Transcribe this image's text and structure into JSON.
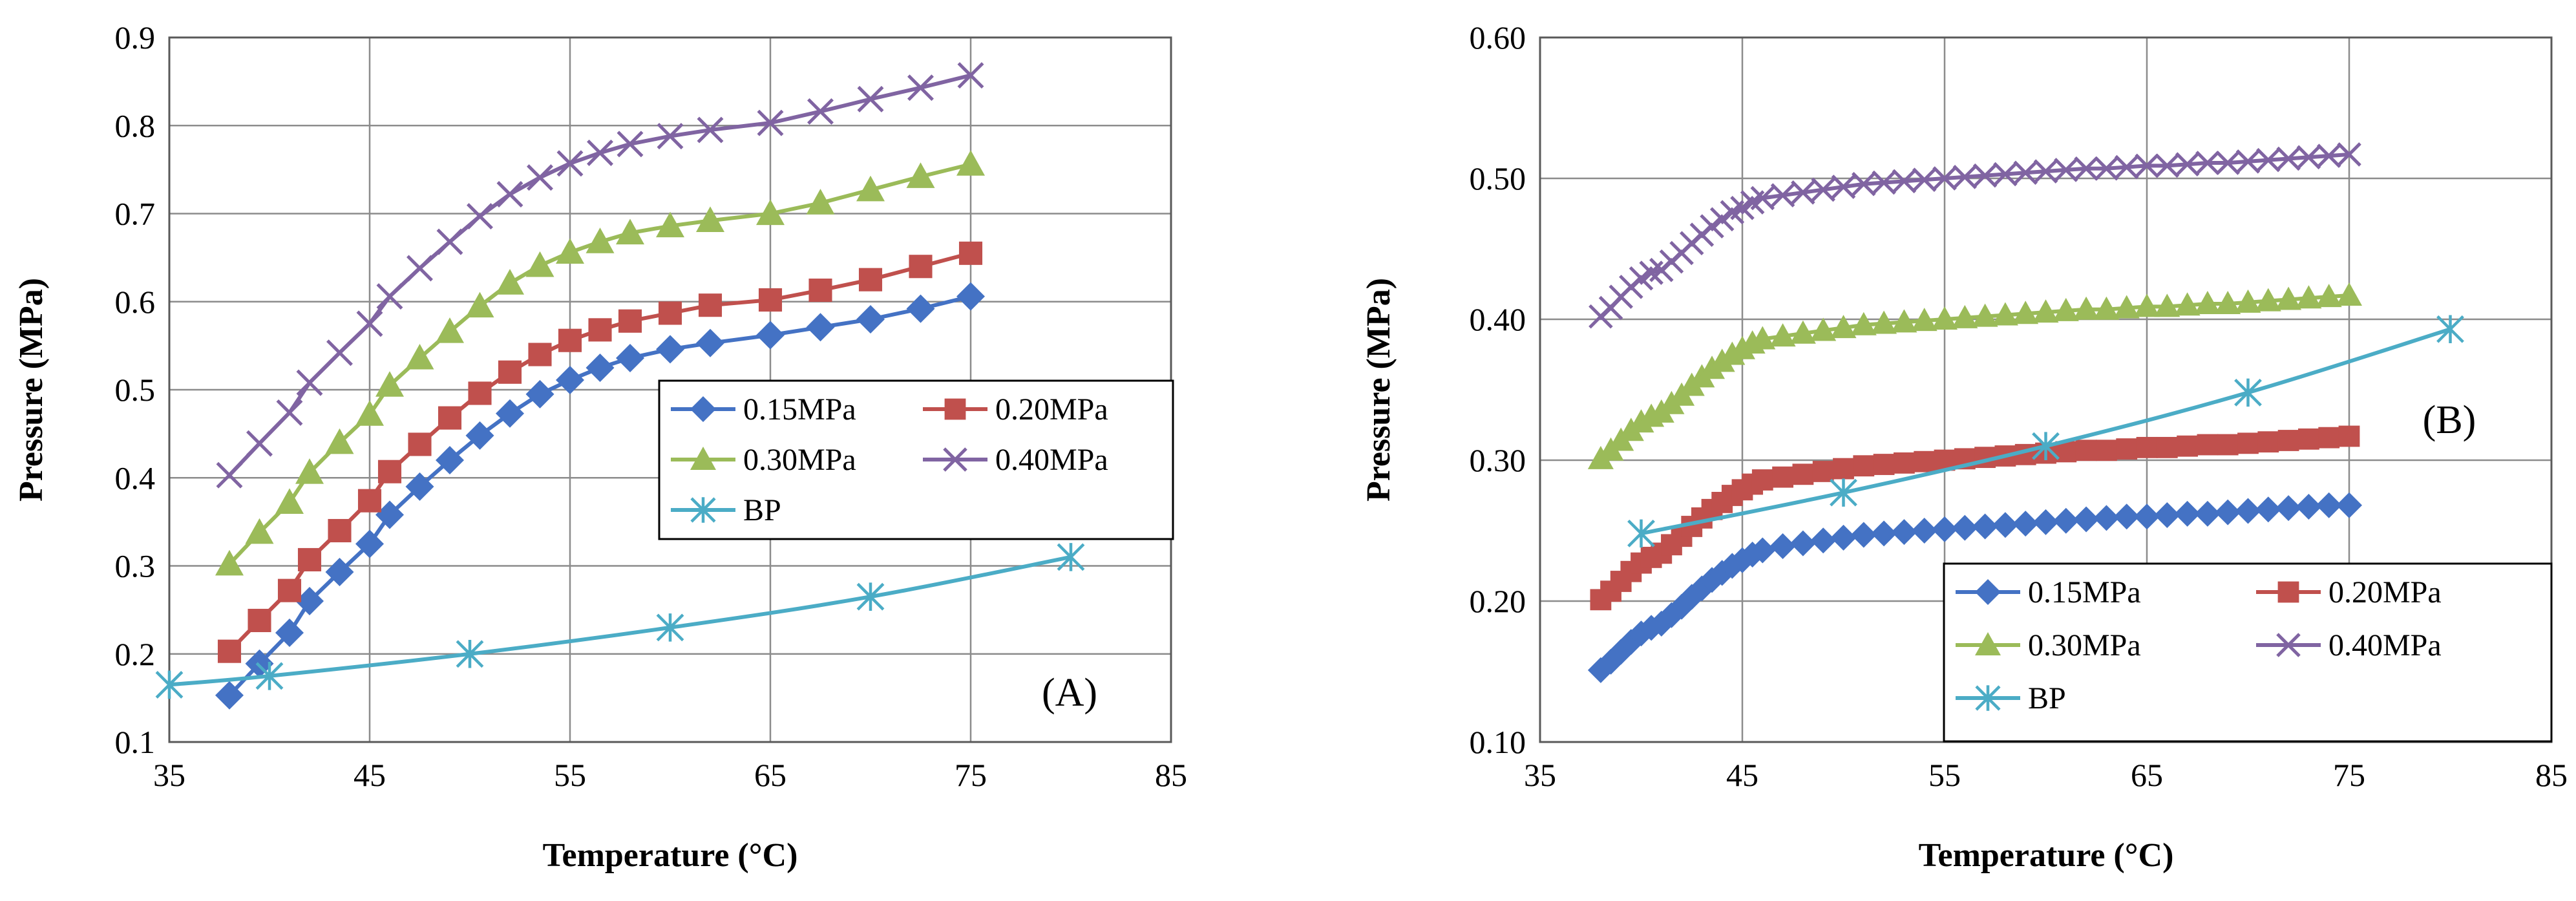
{
  "chart_data": [
    {
      "type": "line",
      "panel_label": "(A)",
      "xlabel": "Temperature (°C)",
      "ylabel": "Pressure (MPa)",
      "xlim": [
        35,
        85
      ],
      "ylim": [
        0.1,
        0.9
      ],
      "x_ticks": [
        "35",
        "45",
        "55",
        "65",
        "75",
        "85"
      ],
      "y_ticks": [
        "0.1",
        "0.2",
        "0.3",
        "0.4",
        "0.5",
        "0.6",
        "0.7",
        "0.8",
        "0.9"
      ],
      "grid": true,
      "legend_position": "center-right",
      "legend_columns": 2,
      "series": [
        {
          "name": "0.15MPa",
          "color": "#4472C4",
          "marker": "diamond",
          "x": [
            38,
            39.5,
            41,
            42,
            43.5,
            45,
            46,
            47.5,
            49,
            50.5,
            52,
            53.5,
            55,
            56.5,
            58,
            60,
            62,
            65,
            67.5,
            70,
            72.5,
            75
          ],
          "y": [
            0.153,
            0.189,
            0.224,
            0.26,
            0.293,
            0.325,
            0.358,
            0.39,
            0.42,
            0.448,
            0.473,
            0.495,
            0.511,
            0.525,
            0.536,
            0.546,
            0.553,
            0.562,
            0.571,
            0.58,
            0.592,
            0.606
          ]
        },
        {
          "name": "0.20MPa",
          "color": "#C0504D",
          "marker": "square",
          "x": [
            38,
            39.5,
            41,
            42,
            43.5,
            45,
            46,
            47.5,
            49,
            50.5,
            52,
            53.5,
            55,
            56.5,
            58,
            60,
            62,
            65,
            67.5,
            70,
            72.5,
            75
          ],
          "y": [
            0.203,
            0.238,
            0.272,
            0.307,
            0.34,
            0.374,
            0.407,
            0.438,
            0.468,
            0.496,
            0.52,
            0.54,
            0.556,
            0.568,
            0.578,
            0.587,
            0.596,
            0.602,
            0.613,
            0.625,
            0.64,
            0.655
          ]
        },
        {
          "name": "0.30MPa",
          "color": "#9BBB59",
          "marker": "triangle",
          "x": [
            38,
            39.5,
            41,
            42,
            43.5,
            45,
            46,
            47.5,
            49,
            50.5,
            52,
            53.5,
            55,
            56.5,
            58,
            60,
            62,
            65,
            67.5,
            70,
            72.5,
            75
          ],
          "y": [
            0.302,
            0.338,
            0.372,
            0.406,
            0.44,
            0.472,
            0.505,
            0.536,
            0.566,
            0.595,
            0.621,
            0.641,
            0.656,
            0.668,
            0.678,
            0.686,
            0.692,
            0.7,
            0.712,
            0.727,
            0.742,
            0.756
          ]
        },
        {
          "name": "0.40MPa",
          "color": "#8064A2",
          "marker": "x",
          "x": [
            38,
            39.5,
            41,
            42,
            43.5,
            45,
            46,
            47.5,
            49,
            50.5,
            52,
            53.5,
            55,
            56.5,
            58,
            60,
            62,
            65,
            67.5,
            70,
            72.5,
            75
          ],
          "y": [
            0.403,
            0.439,
            0.474,
            0.508,
            0.542,
            0.575,
            0.606,
            0.638,
            0.668,
            0.697,
            0.722,
            0.741,
            0.757,
            0.769,
            0.779,
            0.788,
            0.795,
            0.803,
            0.816,
            0.83,
            0.843,
            0.857
          ]
        },
        {
          "name": "BP",
          "color": "#4BACC6",
          "marker": "asterisk",
          "smooth": true,
          "x": [
            35,
            40,
            50,
            60,
            70,
            80
          ],
          "y": [
            0.165,
            0.175,
            0.2,
            0.23,
            0.265,
            0.31
          ]
        }
      ]
    },
    {
      "type": "line",
      "panel_label": "(B)",
      "xlabel": "Temperature (°C)",
      "ylabel": "Pressure (MPa)",
      "xlim": [
        35,
        85
      ],
      "ylim": [
        0.1,
        0.6
      ],
      "x_ticks": [
        "35",
        "45",
        "55",
        "65",
        "75",
        "85"
      ],
      "y_ticks": [
        "0.10",
        "0.20",
        "0.30",
        "0.40",
        "0.50",
        "0.60"
      ],
      "grid": true,
      "legend_position": "bottom-right",
      "legend_columns": 2,
      "series": [
        {
          "name": "0.15MPa",
          "color": "#4472C4",
          "marker": "diamond",
          "x": [
            38,
            38.5,
            39,
            39.5,
            40,
            40.5,
            41,
            41.5,
            42,
            42.5,
            43,
            43.5,
            44,
            44.5,
            45,
            45.5,
            46,
            47,
            48,
            49,
            50,
            51,
            52,
            53,
            54,
            55,
            56,
            57,
            58,
            59,
            60,
            61,
            62,
            63,
            64,
            65,
            66,
            67,
            68,
            69,
            70,
            71,
            72,
            73,
            74,
            75
          ],
          "y": [
            0.151,
            0.157,
            0.164,
            0.171,
            0.177,
            0.181,
            0.184,
            0.19,
            0.196,
            0.203,
            0.209,
            0.215,
            0.22,
            0.225,
            0.229,
            0.233,
            0.236,
            0.239,
            0.241,
            0.243,
            0.245,
            0.247,
            0.248,
            0.249,
            0.25,
            0.251,
            0.252,
            0.253,
            0.254,
            0.255,
            0.256,
            0.257,
            0.258,
            0.259,
            0.26,
            0.26,
            0.261,
            0.262,
            0.262,
            0.263,
            0.264,
            0.265,
            0.266,
            0.267,
            0.268,
            0.268
          ]
        },
        {
          "name": "0.20MPa",
          "color": "#C0504D",
          "marker": "square",
          "x": [
            38,
            38.5,
            39,
            39.5,
            40,
            40.5,
            41,
            41.5,
            42,
            42.5,
            43,
            43.5,
            44,
            44.5,
            45,
            45.5,
            46,
            47,
            48,
            49,
            50,
            51,
            52,
            53,
            54,
            55,
            56,
            57,
            58,
            59,
            60,
            61,
            62,
            63,
            64,
            65,
            66,
            67,
            68,
            69,
            70,
            71,
            72,
            73,
            74,
            75
          ],
          "y": [
            0.201,
            0.207,
            0.214,
            0.221,
            0.227,
            0.231,
            0.234,
            0.24,
            0.246,
            0.253,
            0.259,
            0.265,
            0.27,
            0.275,
            0.279,
            0.283,
            0.286,
            0.288,
            0.29,
            0.292,
            0.294,
            0.296,
            0.297,
            0.298,
            0.299,
            0.3,
            0.301,
            0.302,
            0.303,
            0.304,
            0.305,
            0.306,
            0.307,
            0.307,
            0.308,
            0.309,
            0.309,
            0.31,
            0.311,
            0.311,
            0.312,
            0.313,
            0.314,
            0.315,
            0.316,
            0.317
          ]
        },
        {
          "name": "0.30MPa",
          "color": "#9BBB59",
          "marker": "triangle",
          "x": [
            38,
            38.5,
            39,
            39.5,
            40,
            40.5,
            41,
            41.5,
            42,
            42.5,
            43,
            43.5,
            44,
            44.5,
            45,
            45.5,
            46,
            47,
            48,
            49,
            50,
            51,
            52,
            53,
            54,
            55,
            56,
            57,
            58,
            59,
            60,
            61,
            62,
            63,
            64,
            65,
            66,
            67,
            68,
            69,
            70,
            71,
            72,
            73,
            74,
            75
          ],
          "y": [
            0.301,
            0.307,
            0.314,
            0.321,
            0.327,
            0.331,
            0.334,
            0.34,
            0.346,
            0.353,
            0.359,
            0.365,
            0.37,
            0.375,
            0.379,
            0.383,
            0.386,
            0.388,
            0.39,
            0.392,
            0.394,
            0.396,
            0.397,
            0.398,
            0.399,
            0.4,
            0.401,
            0.402,
            0.403,
            0.404,
            0.405,
            0.406,
            0.407,
            0.407,
            0.408,
            0.409,
            0.409,
            0.41,
            0.411,
            0.411,
            0.412,
            0.413,
            0.414,
            0.415,
            0.416,
            0.417
          ]
        },
        {
          "name": "0.40MPa",
          "color": "#8064A2",
          "marker": "x",
          "x": [
            38,
            38.5,
            39,
            39.5,
            40,
            40.5,
            41,
            41.5,
            42,
            42.5,
            43,
            43.5,
            44,
            44.5,
            45,
            45.5,
            46,
            47,
            48,
            49,
            50,
            51,
            52,
            53,
            54,
            55,
            56,
            57,
            58,
            59,
            60,
            61,
            62,
            63,
            64,
            65,
            66,
            67,
            68,
            69,
            70,
            71,
            72,
            73,
            74,
            75
          ],
          "y": [
            0.402,
            0.408,
            0.416,
            0.423,
            0.429,
            0.433,
            0.435,
            0.441,
            0.447,
            0.454,
            0.46,
            0.466,
            0.471,
            0.476,
            0.479,
            0.483,
            0.486,
            0.488,
            0.49,
            0.492,
            0.494,
            0.496,
            0.497,
            0.498,
            0.499,
            0.5,
            0.501,
            0.502,
            0.503,
            0.504,
            0.505,
            0.506,
            0.507,
            0.507,
            0.508,
            0.509,
            0.509,
            0.51,
            0.511,
            0.511,
            0.512,
            0.513,
            0.514,
            0.515,
            0.516,
            0.517
          ]
        },
        {
          "name": "BP",
          "color": "#4BACC6",
          "marker": "asterisk",
          "smooth": true,
          "x": [
            40,
            50,
            60,
            70,
            80
          ],
          "y": [
            0.248,
            0.277,
            0.31,
            0.348,
            0.393
          ]
        }
      ]
    }
  ]
}
